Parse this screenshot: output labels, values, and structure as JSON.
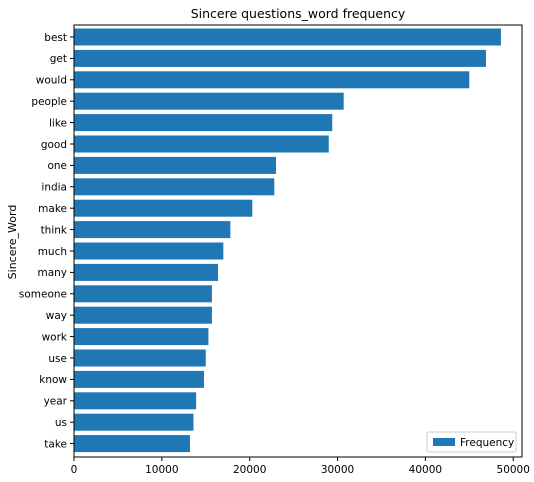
{
  "chart_data": {
    "type": "bar",
    "orientation": "horizontal",
    "title": "Sincere questions_word frequency",
    "xlabel": "",
    "ylabel": "Sincere_Word",
    "xlim": [
      0,
      51000
    ],
    "xticks": [
      0,
      10000,
      20000,
      30000,
      40000,
      50000
    ],
    "categories": [
      "best",
      "get",
      "would",
      "people",
      "like",
      "good",
      "one",
      "india",
      "make",
      "think",
      "much",
      "many",
      "someone",
      "way",
      "work",
      "use",
      "know",
      "year",
      "us",
      "take"
    ],
    "series": [
      {
        "name": "Frequency",
        "values": [
          48600,
          46900,
          45000,
          30700,
          29400,
          29000,
          23000,
          22800,
          20300,
          17800,
          17000,
          16400,
          15700,
          15700,
          15300,
          15000,
          14800,
          13900,
          13600,
          13200
        ]
      }
    ],
    "legend_position": "lower-right",
    "grid": false,
    "colors": {
      "bar": "#1f77b4",
      "axis": "#000000",
      "background": "#ffffff"
    }
  }
}
